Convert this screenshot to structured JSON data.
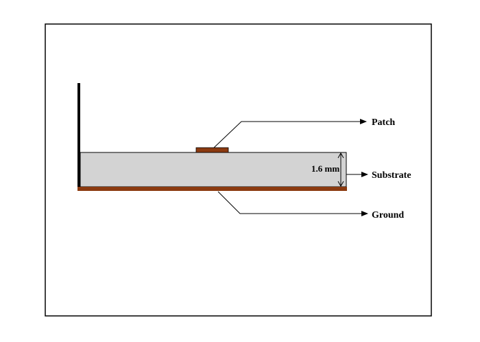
{
  "diagram": {
    "labels": {
      "patch": "Patch",
      "substrate": "Substrate",
      "ground": "Ground",
      "thickness": "1.6 mm"
    },
    "colors": {
      "frame": "#000000",
      "substrate_fill": "#d3d3d3",
      "copper": "#8b3a10",
      "feed_probe": "#000000",
      "leader_line": "#000000"
    }
  }
}
